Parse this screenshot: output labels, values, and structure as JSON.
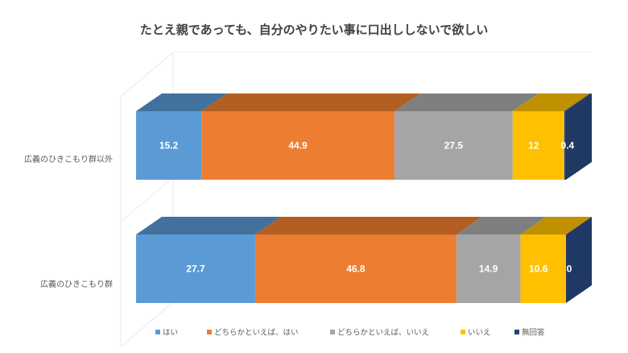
{
  "chart_data": {
    "type": "bar",
    "orientation": "horizontal",
    "stacked": "100%",
    "style": "3d",
    "title": "たとえ親であっても、自分のやりたい事に口出ししないで欲しい",
    "categories": [
      "広義のひきこもり群以外",
      "広義のひきこもり群"
    ],
    "series": [
      {
        "name": "はい",
        "color": "#5B9BD5",
        "top_color": "#41719C",
        "values": [
          15.2,
          27.7
        ],
        "labels": [
          "15.2",
          "27.7"
        ]
      },
      {
        "name": "どちらかといえば、はい",
        "color": "#ED7D31",
        "top_color": "#B35E22",
        "values": [
          44.9,
          46.8
        ],
        "labels": [
          "44.9",
          "46.8"
        ]
      },
      {
        "name": "どちらかといえば、いいえ",
        "color": "#A5A5A5",
        "top_color": "#7F7F7F",
        "values": [
          27.5,
          14.9
        ],
        "labels": [
          "27.5",
          "14.9"
        ]
      },
      {
        "name": "いいえ",
        "color": "#FFC000",
        "top_color": "#BF9000",
        "values": [
          12,
          10.6
        ],
        "labels": [
          "12",
          "10.6"
        ]
      },
      {
        "name": "無回答",
        "color": "#264478",
        "top_color": "#1F3864",
        "values": [
          0.4,
          0
        ],
        "labels": [
          "0.4",
          "0"
        ]
      }
    ],
    "xlim": [
      0,
      100
    ],
    "legend_position": "bottom",
    "grid": false
  }
}
